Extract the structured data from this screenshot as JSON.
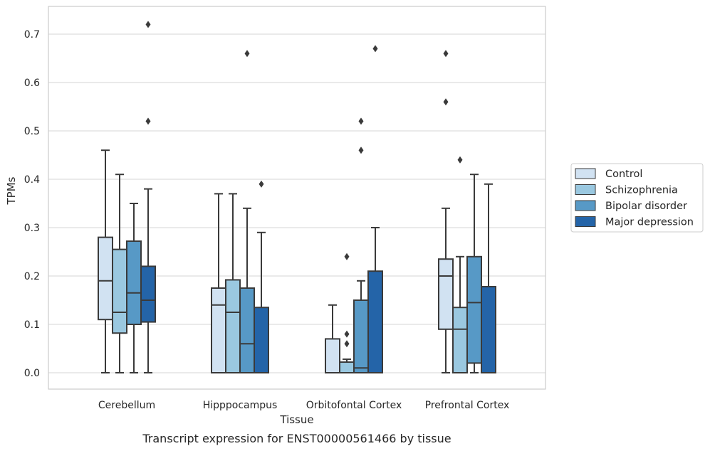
{
  "chart_data": {
    "type": "box",
    "title": "",
    "xlabel": "Tissue",
    "ylabel": "TPMs",
    "caption": "Transcript expression for ENST00000561466 by tissue",
    "ylim": [
      -0.035,
      0.76
    ],
    "yticks": [
      0.0,
      0.1,
      0.2,
      0.3,
      0.4,
      0.5,
      0.6,
      0.7
    ],
    "ytick_labels": [
      "0.0",
      "0.1",
      "0.2",
      "0.3",
      "0.4",
      "0.5",
      "0.6",
      "0.7"
    ],
    "grid": "horizontal",
    "legend_position": "right",
    "categories": [
      "Cerebellum",
      "Hipppocampus",
      "Orbitofontal Cortex",
      "Prefrontal Cortex"
    ],
    "series": [
      {
        "name": "Control",
        "color": "#d1e2f2",
        "boxes": [
          {
            "whisker_low": 0.0,
            "q1": 0.11,
            "median": 0.19,
            "q3": 0.28,
            "whisker_high": 0.46,
            "outliers": []
          },
          {
            "whisker_low": 0.0,
            "q1": 0.0,
            "median": 0.14,
            "q3": 0.175,
            "whisker_high": 0.37,
            "outliers": []
          },
          {
            "whisker_low": 0.0,
            "q1": 0.0,
            "median": 0.0,
            "q3": 0.07,
            "whisker_high": 0.14,
            "outliers": []
          },
          {
            "whisker_low": 0.0,
            "q1": 0.09,
            "median": 0.2,
            "q3": 0.235,
            "whisker_high": 0.34,
            "outliers": [
              0.56,
              0.66
            ]
          }
        ]
      },
      {
        "name": "Schizophrenia",
        "color": "#9ac8e0",
        "boxes": [
          {
            "whisker_low": 0.0,
            "q1": 0.082,
            "median": 0.125,
            "q3": 0.255,
            "whisker_high": 0.41,
            "outliers": []
          },
          {
            "whisker_low": 0.0,
            "q1": 0.0,
            "median": 0.125,
            "q3": 0.192,
            "whisker_high": 0.37,
            "outliers": []
          },
          {
            "whisker_low": 0.0,
            "q1": 0.0,
            "median": 0.0,
            "q3": 0.022,
            "whisker_high": 0.028,
            "outliers": [
              0.06,
              0.08,
              0.24
            ]
          },
          {
            "whisker_low": 0.0,
            "q1": 0.0,
            "median": 0.09,
            "q3": 0.135,
            "whisker_high": 0.24,
            "outliers": [
              0.44
            ]
          }
        ]
      },
      {
        "name": "Bipolar disorder",
        "color": "#5799c6",
        "boxes": [
          {
            "whisker_low": 0.0,
            "q1": 0.1,
            "median": 0.165,
            "q3": 0.272,
            "whisker_high": 0.35,
            "outliers": []
          },
          {
            "whisker_low": 0.0,
            "q1": 0.0,
            "median": 0.06,
            "q3": 0.175,
            "whisker_high": 0.34,
            "outliers": [
              0.66
            ]
          },
          {
            "whisker_low": 0.0,
            "q1": 0.0,
            "median": 0.01,
            "q3": 0.15,
            "whisker_high": 0.19,
            "outliers": [
              0.46,
              0.52
            ]
          },
          {
            "whisker_low": 0.0,
            "q1": 0.02,
            "median": 0.145,
            "q3": 0.24,
            "whisker_high": 0.41,
            "outliers": []
          }
        ]
      },
      {
        "name": "Major depression",
        "color": "#2464a8",
        "boxes": [
          {
            "whisker_low": 0.0,
            "q1": 0.105,
            "median": 0.15,
            "q3": 0.22,
            "whisker_high": 0.38,
            "outliers": [
              0.52,
              0.72
            ]
          },
          {
            "whisker_low": 0.0,
            "q1": 0.0,
            "median": 0.0,
            "q3": 0.135,
            "whisker_high": 0.29,
            "outliers": [
              0.39
            ]
          },
          {
            "whisker_low": 0.0,
            "q1": 0.0,
            "median": 0.0,
            "q3": 0.21,
            "whisker_high": 0.3,
            "outliers": [
              0.67
            ]
          },
          {
            "whisker_low": 0.0,
            "q1": 0.0,
            "median": 0.0,
            "q3": 0.178,
            "whisker_high": 0.39,
            "outliers": []
          }
        ]
      }
    ]
  }
}
